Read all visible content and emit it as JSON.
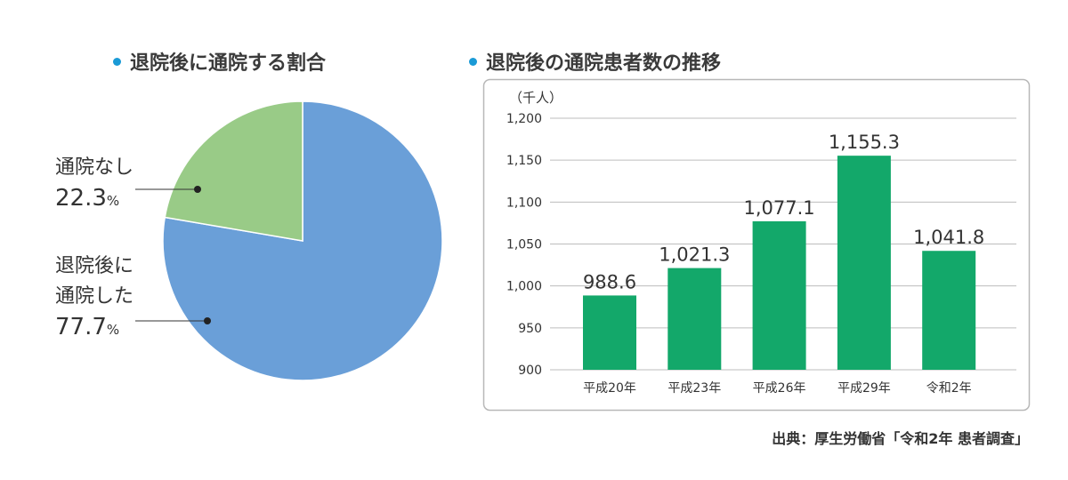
{
  "colors": {
    "accent_dot": "#1a9ad6",
    "pie_blue": "#6a9fd8",
    "pie_green": "#99cb87",
    "bar_green": "#13a86a",
    "frame": "#b8b8b8",
    "grid": "#bdbdbd"
  },
  "pie_section": {
    "title": "退院後に通院する割合"
  },
  "bar_section": {
    "title": "退院後の通院患者数の推移"
  },
  "source": "出典：厚生労働省「令和2年 患者調査」",
  "chart_data": [
    {
      "type": "pie",
      "title": "退院後に通院する割合",
      "start_angle": "12 o'clock",
      "direction": "clockwise",
      "slices": [
        {
          "label_lines": [
            "退院後に",
            "通院した"
          ],
          "value": 77.7,
          "value_text": "77.7",
          "unit": "%",
          "color": "#6a9fd8"
        },
        {
          "label_lines": [
            "通院なし"
          ],
          "value": 22.3,
          "value_text": "22.3",
          "unit": "%",
          "color": "#99cb87"
        }
      ]
    },
    {
      "type": "bar",
      "title": "退院後の通院患者数の推移",
      "unit_label": "（千人）",
      "categories": [
        "平成20年",
        "平成23年",
        "平成26年",
        "平成29年",
        "令和2年"
      ],
      "values": [
        988.6,
        1021.3,
        1077.1,
        1155.3,
        1041.8
      ],
      "value_labels": [
        "988.6",
        "1,021.3",
        "1,077.1",
        "1,155.3",
        "1,041.8"
      ],
      "ylim": [
        900,
        1200
      ],
      "yticks": [
        900,
        950,
        1000,
        1050,
        1100,
        1150,
        1200
      ],
      "ytick_labels": [
        "900",
        "950",
        "1,000",
        "1,050",
        "1,100",
        "1,150",
        "1,200"
      ],
      "grid": true,
      "color": "#13a86a"
    }
  ]
}
